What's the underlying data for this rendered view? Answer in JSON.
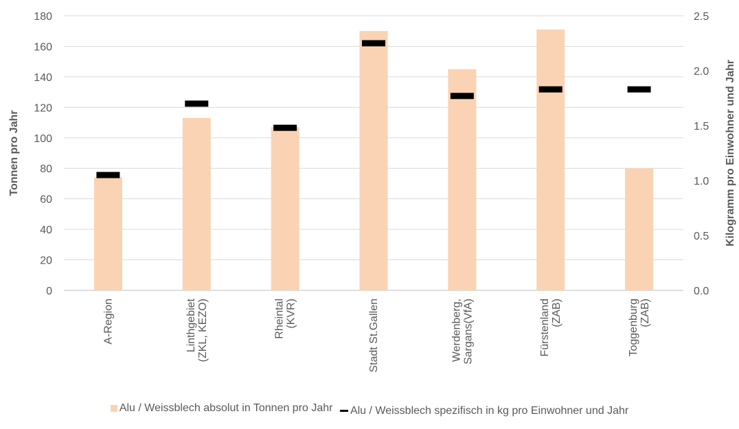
{
  "chart_data": {
    "type": "bar",
    "categories": [
      [
        "A-Region"
      ],
      [
        "Linthgebiet",
        "(ZKL, KEZO)"
      ],
      [
        "Rheintal",
        "(KVR)"
      ],
      [
        "Stadt St.Gallen"
      ],
      [
        "Werdenberg,",
        "Sargans(VfA)"
      ],
      [
        "Fürstenland",
        "(ZAB)"
      ],
      [
        "Toggenburg",
        "(ZAB)"
      ]
    ],
    "series": [
      {
        "name": "Alu / Weissblech absolut in Tonnen pro Jahr",
        "type": "bar",
        "axis": "left",
        "color": "#FAD3B4",
        "values": [
          74,
          113,
          107,
          170,
          145,
          171,
          80
        ]
      },
      {
        "name": "Alu / Weissblech spezifisch in kg pro Einwohner und Jahr",
        "type": "marker",
        "axis": "right",
        "color": "#000000",
        "values": [
          1.05,
          1.7,
          1.48,
          2.25,
          1.77,
          1.83,
          1.83
        ]
      }
    ],
    "ylabel": "Tonnen pro Jahr",
    "y2label": "Kilogramm pro Einwohner und Jahr",
    "ylim": [
      0,
      180
    ],
    "yticks": [
      "0",
      "20",
      "40",
      "60",
      "80",
      "100",
      "120",
      "140",
      "160",
      "180"
    ],
    "y2lim": [
      0,
      2.5
    ],
    "y2ticks": [
      "0.0",
      "0.5",
      "1.0",
      "1.5",
      "2.0",
      "2.5"
    ],
    "grid": true,
    "legend_position": "bottom"
  }
}
